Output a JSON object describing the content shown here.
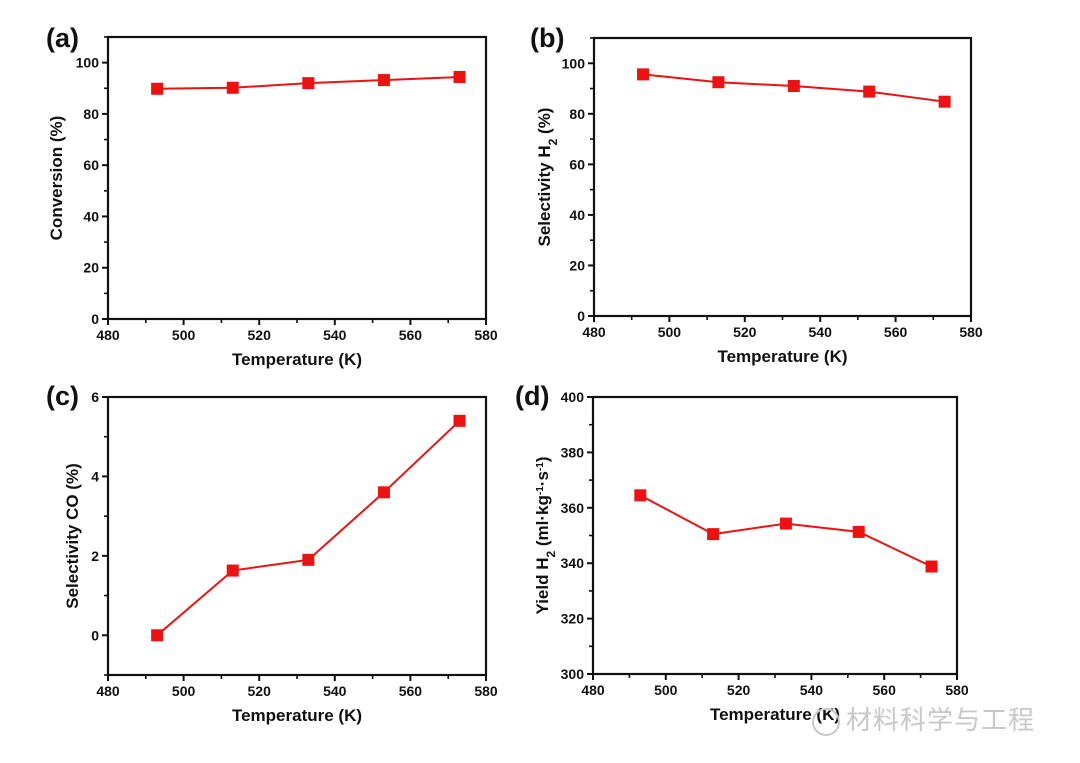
{
  "colors": {
    "series": "#ee1111",
    "axis": "#111111"
  },
  "watermark": "材料科学与工程",
  "chart_data": [
    {
      "panel": "(a)",
      "type": "line",
      "x": [
        493,
        513,
        533,
        553,
        573
      ],
      "values": [
        89.8,
        90.2,
        92.0,
        93.2,
        94.4
      ],
      "xlabel": "Temperature (K)",
      "ylabel": [
        {
          "t": "Conversion (%)"
        }
      ],
      "xlim": [
        480,
        580
      ],
      "ylim": [
        0,
        110
      ],
      "xticks": [
        480,
        500,
        520,
        540,
        560,
        580
      ],
      "yticks": [
        0,
        20,
        40,
        60,
        80,
        100
      ],
      "marker": "square",
      "grid": false
    },
    {
      "panel": "(b)",
      "type": "line",
      "x": [
        493,
        513,
        533,
        553,
        573
      ],
      "values": [
        95.6,
        92.5,
        91.0,
        88.8,
        84.8
      ],
      "xlabel": "Temperature (K)",
      "ylabel": [
        {
          "t": "Selectivity H"
        },
        {
          "t": "2",
          "s": "sub"
        },
        {
          "t": " (%)"
        }
      ],
      "xlim": [
        480,
        580
      ],
      "ylim": [
        0,
        110
      ],
      "xticks": [
        480,
        500,
        520,
        540,
        560,
        580
      ],
      "yticks": [
        0,
        20,
        40,
        60,
        80,
        100
      ],
      "marker": "square",
      "grid": false
    },
    {
      "panel": "(c)",
      "type": "line",
      "x": [
        493,
        513,
        533,
        553,
        573
      ],
      "values": [
        0.0,
        1.63,
        1.9,
        3.6,
        5.4
      ],
      "xlabel": "Temperature (K)",
      "ylabel": [
        {
          "t": "Selectivity CO (%)"
        }
      ],
      "xlim": [
        480,
        580
      ],
      "ylim": [
        -1,
        6
      ],
      "xticks": [
        480,
        500,
        520,
        540,
        560,
        580
      ],
      "yticks": [
        0,
        2,
        4,
        6
      ],
      "marker": "square",
      "grid": false
    },
    {
      "panel": "(d)",
      "type": "line",
      "x": [
        493,
        513,
        533,
        553,
        573
      ],
      "values": [
        364.5,
        350.5,
        354.3,
        351.3,
        338.8
      ],
      "xlabel": "Temperature (K)",
      "ylabel": [
        {
          "t": "Yield H"
        },
        {
          "t": "2",
          "s": "sub"
        },
        {
          "t": " (ml·kg"
        },
        {
          "t": "-1",
          "s": "sup"
        },
        {
          "t": "·s"
        },
        {
          "t": "-1",
          "s": "sup"
        },
        {
          "t": ")"
        }
      ],
      "xlim": [
        480,
        580
      ],
      "ylim": [
        300,
        400
      ],
      "xticks": [
        480,
        500,
        520,
        540,
        560,
        580
      ],
      "yticks": [
        300,
        320,
        340,
        360,
        380,
        400
      ],
      "marker": "square",
      "grid": false
    }
  ]
}
